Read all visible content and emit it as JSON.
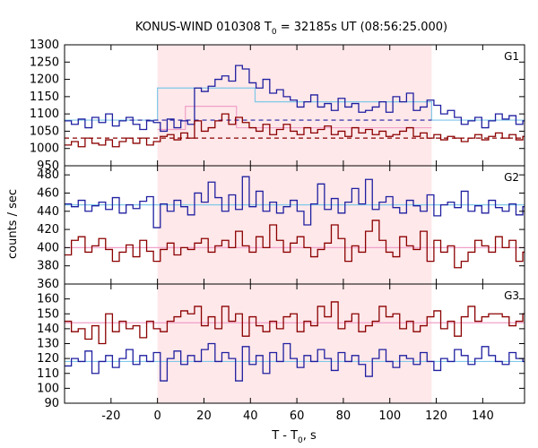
{
  "title": {
    "prefix": "KONUS-WIND 010308 T",
    "subscript": "0",
    "suffix": " = 32185s UT (08:56:25.000)"
  },
  "xlabel": {
    "prefix": "T - T",
    "subscript": "0",
    "suffix": ", s"
  },
  "ylabel": "counts / sec",
  "colors": {
    "blue": "#1f1fa0",
    "red": "#8b0000",
    "cyan": "#7fc8e8",
    "pink": "#f0a0c8",
    "shade": "#ffe8ea"
  },
  "chart_data": {
    "type": "line",
    "x_range": [
      -40,
      158
    ],
    "x_ticks": [
      -20,
      0,
      20,
      40,
      60,
      80,
      100,
      120,
      140
    ],
    "shade_range": [
      0,
      118
    ],
    "bin_width": 2.944,
    "x_start": -40,
    "panels": [
      {
        "label": "G1",
        "ylim": [
          950,
          1300
        ],
        "yticks": [
          950,
          1000,
          1050,
          1100,
          1150,
          1200,
          1250,
          1300
        ],
        "series": [
          {
            "color": "blue",
            "values": [
              1080,
              1070,
              1085,
              1060,
              1090,
              1075,
              1100,
              1065,
              1080,
              1090,
              1070,
              1055,
              1080,
              1075,
              1050,
              1085,
              1060,
              1080,
              1070,
              1175,
              1165,
              1180,
              1200,
              1210,
              1195,
              1240,
              1230,
              1190,
              1175,
              1200,
              1160,
              1170,
              1150,
              1140,
              1120,
              1135,
              1155,
              1120,
              1130,
              1110,
              1145,
              1120,
              1130,
              1105,
              1110,
              1120,
              1135,
              1105,
              1150,
              1135,
              1160,
              1110,
              1120,
              1140,
              1125,
              1100,
              1110,
              1090,
              1070,
              1080,
              1090,
              1060,
              1080,
              1100,
              1085,
              1095,
              1070,
              1080,
              1110,
              1090,
              1075,
              1095,
              1080,
              1070
            ]
          },
          {
            "color": "red",
            "values": [
              1010,
              1020,
              1005,
              1030,
              1015,
              1010,
              1025,
              1005,
              1020,
              1030,
              1015,
              1030,
              1010,
              1020,
              1035,
              1040,
              1025,
              1045,
              1030,
              1080,
              1050,
              1060,
              1080,
              1100,
              1070,
              1090,
              1075,
              1060,
              1050,
              1070,
              1040,
              1055,
              1070,
              1050,
              1040,
              1060,
              1045,
              1055,
              1065,
              1040,
              1050,
              1035,
              1060,
              1045,
              1055,
              1040,
              1050,
              1035,
              1040,
              1050,
              1060,
              1035,
              1045,
              1030,
              1040,
              1025,
              1035,
              1030,
              1020,
              1030,
              1040,
              1025,
              1035,
              1045,
              1030,
              1040,
              1025,
              1035,
              1020,
              1030,
              1045,
              1035,
              1025,
              1040
            ]
          }
        ],
        "steps": [
          {
            "color": "cyan",
            "segments": [
              [
                -40,
                0,
                1082
              ],
              [
                0,
                42,
                1175
              ],
              [
                42,
                118,
                1135
              ],
              [
                118,
                158,
                1082
              ]
            ]
          },
          {
            "color": "pink",
            "segments": [
              [
                0,
                12,
                1055
              ],
              [
                12,
                34,
                1122
              ],
              [
                34,
                118,
                1060
              ]
            ]
          }
        ],
        "dashed": [
          {
            "color": "blue",
            "y": 1082,
            "x": [
              -12,
              118
            ]
          },
          {
            "color": "red",
            "y": 1030,
            "x": [
              -40,
              158
            ]
          }
        ]
      },
      {
        "label": "G2",
        "ylim": [
          360,
          490
        ],
        "yticks": [
          360,
          380,
          400,
          420,
          440,
          460,
          480
        ],
        "series": [
          {
            "color": "blue",
            "values": [
              448,
              445,
              452,
              440,
              446,
              450,
              442,
              455,
              438,
              447,
              443,
              451,
              456,
              422,
              448,
              440,
              452,
              445,
              436,
              460,
              450,
              472,
              455,
              440,
              458,
              442,
              478,
              445,
              462,
              440,
              450,
              438,
              445,
              452,
              440,
              425,
              448,
              470,
              442,
              454,
              438,
              450,
              465,
              448,
              475,
              442,
              450,
              456,
              444,
              438,
              452,
              446,
              440,
              458,
              435,
              447,
              450,
              444,
              462,
              440,
              446,
              438,
              452,
              444,
              440,
              448,
              436,
              445,
              440,
              452,
              448,
              442,
              446,
              450
            ]
          },
          {
            "color": "red",
            "values": [
              392,
              408,
              412,
              395,
              402,
              410,
              398,
              385,
              395,
              403,
              390,
              408,
              396,
              385,
              398,
              405,
              392,
              400,
              398,
              405,
              410,
              395,
              402,
              408,
              400,
              418,
              402,
              395,
              412,
              400,
              425,
              408,
              395,
              405,
              412,
              400,
              390,
              398,
              405,
              425,
              410,
              385,
              402,
              395,
              418,
              430,
              408,
              395,
              390,
              412,
              402,
              398,
              418,
              385,
              408,
              395,
              402,
              378,
              385,
              395,
              408,
              402,
              395,
              412,
              400,
              408,
              385,
              395,
              412,
              405,
              390,
              402,
              398,
              396
            ]
          }
        ],
        "steps": [
          {
            "color": "cyan",
            "segments": [
              [
                -40,
                158,
                447
              ]
            ]
          },
          {
            "color": "pink",
            "segments": [
              [
                -40,
                158,
                400
              ]
            ]
          }
        ],
        "dashed": []
      },
      {
        "label": "G3",
        "ylim": [
          90,
          170
        ],
        "yticks": [
          90,
          100,
          110,
          120,
          130,
          140,
          150,
          160
        ],
        "series": [
          {
            "color": "blue",
            "values": [
              115,
              120,
              118,
              125,
              110,
              118,
              122,
              114,
              120,
              126,
              116,
              122,
              118,
              124,
              105,
              120,
              125,
              116,
              122,
              118,
              126,
              130,
              118,
              124,
              120,
              105,
              128,
              116,
              122,
              110,
              124,
              118,
              130,
              120,
              114,
              122,
              118,
              126,
              120,
              112,
              124,
              118,
              122,
              116,
              108,
              120,
              126,
              118,
              114,
              122,
              120,
              116,
              124,
              118,
              112,
              120,
              118,
              126,
              122,
              116,
              120,
              128,
              122,
              118,
              116,
              124,
              120,
              118,
              126,
              132,
              118,
              120,
              124,
              118
            ]
          },
          {
            "color": "red",
            "values": [
              145,
              138,
              140,
              133,
              142,
              130,
              150,
              138,
              145,
              140,
              142,
              134,
              145,
              140,
              138,
              145,
              148,
              152,
              150,
              155,
              142,
              148,
              140,
              155,
              145,
              150,
              135,
              148,
              142,
              138,
              145,
              140,
              148,
              150,
              138,
              145,
              142,
              155,
              148,
              158,
              140,
              145,
              150,
              138,
              142,
              145,
              155,
              148,
              150,
              140,
              145,
              138,
              142,
              148,
              152,
              140,
              145,
              135,
              148,
              155,
              145,
              148,
              150,
              150,
              148,
              142,
              145,
              150,
              148,
              150,
              152,
              148,
              150,
              148
            ]
          }
        ],
        "steps": [
          {
            "color": "cyan",
            "segments": [
              [
                -40,
                158,
                118
              ]
            ]
          },
          {
            "color": "pink",
            "segments": [
              [
                -40,
                158,
                144
              ]
            ]
          }
        ],
        "dashed": []
      }
    ]
  }
}
